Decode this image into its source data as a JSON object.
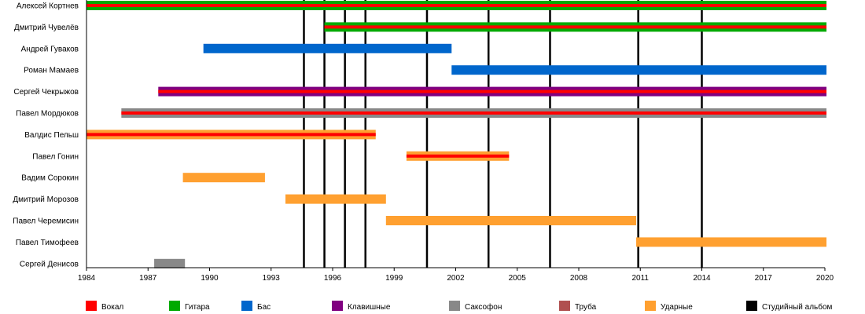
{
  "chart_data": {
    "type": "timeline",
    "x_range": [
      1984,
      2020
    ],
    "x_ticks": [
      1984,
      1987,
      1990,
      1993,
      1996,
      1999,
      2002,
      2005,
      2008,
      2011,
      2014,
      2017,
      2020
    ],
    "colors": {
      "vocal": "#ff0000",
      "guitar": "#00aa00",
      "bass": "#0066cc",
      "keys": "#800080",
      "sax": "#888888",
      "trumpet": "#b05050",
      "drums": "#ffa030",
      "album": "#000000"
    },
    "legend": [
      {
        "key": "vocal",
        "label": "Вокал"
      },
      {
        "key": "guitar",
        "label": "Гитара"
      },
      {
        "key": "bass",
        "label": "Бас"
      },
      {
        "key": "keys",
        "label": "Клавишные"
      },
      {
        "key": "sax",
        "label": "Саксофон"
      },
      {
        "key": "trumpet",
        "label": "Труба"
      },
      {
        "key": "drums",
        "label": "Ударные"
      },
      {
        "key": "album",
        "label": "Студийный альбом"
      }
    ],
    "albums": [
      1994.6,
      1995.6,
      1996.6,
      1997.6,
      2000.6,
      2003.6,
      2006.6,
      2010.9,
      2014.0
    ],
    "members": [
      {
        "name": "Алексей Кортнев",
        "start": 1984.0,
        "end": 2020.1,
        "main": "guitar",
        "stripe": "vocal"
      },
      {
        "name": "Дмитрий Чувелёв",
        "start": 1995.6,
        "end": 2020.1,
        "main": "guitar",
        "stripe": "vocal"
      },
      {
        "name": "Андрей Гуваков",
        "start": 1989.7,
        "end": 2001.8,
        "main": "bass",
        "stripe": null
      },
      {
        "name": "Роман Мамаев",
        "start": 2001.8,
        "end": 2020.1,
        "main": "bass",
        "stripe": null
      },
      {
        "name": "Сергей Чекрыжов",
        "start": 1987.5,
        "end": 2020.1,
        "main": "keys",
        "stripe": "vocal"
      },
      {
        "name": "Павел Мордюков",
        "start": 1985.7,
        "end": 2020.1,
        "main": "sax",
        "stripe": "vocal"
      },
      {
        "name": "Валдис Пельш",
        "start": 1984.0,
        "end": 1998.1,
        "main": "drums",
        "stripe": "vocal"
      },
      {
        "name": "Павел Гонин",
        "start": 1999.6,
        "end": 2004.6,
        "main": "drums",
        "stripe": "vocal"
      },
      {
        "name": "Вадим Сорокин",
        "start": 1988.7,
        "end": 1992.7,
        "main": "drums",
        "stripe": null
      },
      {
        "name": "Дмитрий Морозов",
        "start": 1993.7,
        "end": 1998.6,
        "main": "drums",
        "stripe": null
      },
      {
        "name": "Павел Черемисин",
        "start": 1998.6,
        "end": 2010.8,
        "main": "drums",
        "stripe": null
      },
      {
        "name": "Павел Тимофеев",
        "start": 2010.8,
        "end": 2020.1,
        "main": "drums",
        "stripe": null
      },
      {
        "name": "Сергей Денисов",
        "start": 1987.3,
        "end": 1988.8,
        "main": "sax",
        "stripe": null
      }
    ]
  }
}
